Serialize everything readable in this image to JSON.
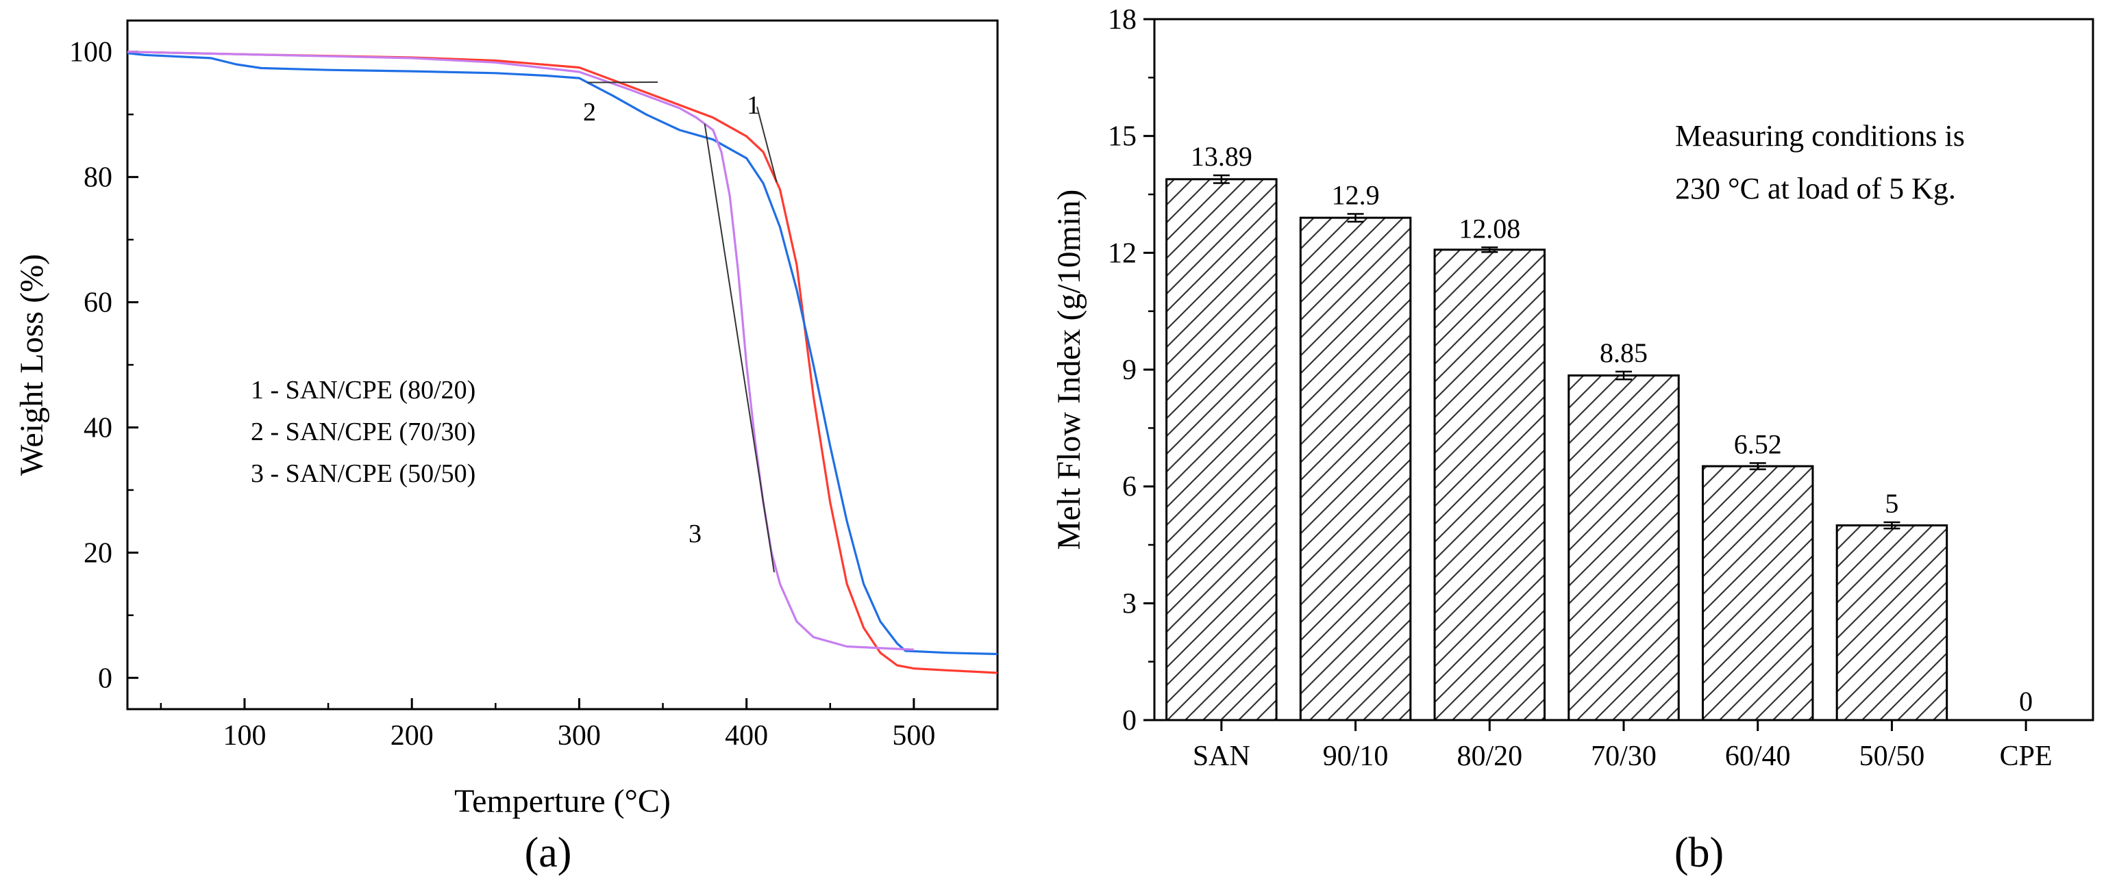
{
  "chart_data": [
    {
      "panel": "(a)",
      "type": "line",
      "xlabel": "Temperture (°C)",
      "ylabel": "Weight Loss (%)",
      "xlim": [
        30,
        550
      ],
      "ylim": [
        -5,
        105
      ],
      "xticks": [
        100,
        200,
        300,
        400,
        500
      ],
      "yticks": [
        0,
        20,
        40,
        60,
        80,
        100
      ],
      "grid": false,
      "legend_position": "middle-left",
      "legend_entries": [
        "1 - SAN/CPE (80/20)",
        "2 - SAN/CPE (70/30)",
        "3 - SAN/CPE (50/50)"
      ],
      "series": [
        {
          "name": "1 - SAN/CPE (80/20)",
          "curve_label": "1",
          "color": "#ff3b30",
          "x": [
            30,
            100,
            200,
            250,
            300,
            320,
            350,
            380,
            400,
            410,
            420,
            430,
            440,
            450,
            460,
            470,
            480,
            490,
            500,
            520,
            550
          ],
          "y": [
            100,
            99.6,
            99.1,
            98.6,
            97.5,
            95.5,
            92.5,
            89.5,
            86.5,
            84,
            78,
            66,
            45,
            28,
            15,
            8,
            4,
            2,
            1.5,
            1.2,
            0.8
          ]
        },
        {
          "name": "2 - SAN/CPE (70/30)",
          "curve_label": "2",
          "color": "#1f6fe5",
          "x": [
            30,
            40,
            80,
            95,
            110,
            150,
            200,
            250,
            280,
            300,
            320,
            340,
            360,
            380,
            400,
            410,
            420,
            430,
            440,
            450,
            460,
            470,
            480,
            490,
            495,
            520,
            550
          ],
          "y": [
            99.8,
            99.5,
            99,
            98,
            97.4,
            97.1,
            96.9,
            96.6,
            96.2,
            95.8,
            93,
            90,
            87.5,
            86,
            83,
            79,
            72,
            62,
            50,
            37,
            25,
            15,
            9,
            5.5,
            4.3,
            4,
            3.8
          ]
        },
        {
          "name": "3 - SAN/CPE (50/50)",
          "curve_label": "3",
          "color": "#c77ef0",
          "x": [
            30,
            100,
            200,
            250,
            300,
            330,
            360,
            370,
            380,
            385,
            390,
            395,
            400,
            405,
            410,
            415,
            420,
            430,
            440,
            460,
            500
          ],
          "y": [
            100,
            99.6,
            99,
            98.3,
            96.8,
            94,
            91,
            89.5,
            87.5,
            84,
            77,
            65,
            50,
            38,
            28,
            20,
            15,
            9,
            6.5,
            5,
            4.5
          ]
        }
      ],
      "annotations": [
        {
          "text": "1",
          "series": "1 - SAN/CPE (80/20)"
        },
        {
          "text": "2",
          "series": "2 - SAN/CPE (70/30)"
        },
        {
          "text": "3",
          "series": "3 - SAN/CPE (50/50)"
        }
      ]
    },
    {
      "panel": "(b)",
      "type": "bar",
      "xlabel": "",
      "ylabel": "Melt Flow Index (g/10min)",
      "ylim": [
        0,
        18
      ],
      "yticks": [
        0,
        3,
        6,
        9,
        12,
        15,
        18
      ],
      "grid": false,
      "categories": [
        "SAN",
        "90/10",
        "80/20",
        "70/30",
        "60/40",
        "50/50",
        "CPE"
      ],
      "values": [
        13.89,
        12.9,
        12.08,
        8.85,
        6.52,
        5,
        0
      ],
      "value_labels": [
        "13.89",
        "12.9",
        "12.08",
        "8.85",
        "6.52",
        "5",
        "0"
      ],
      "errors": [
        0.1,
        0.1,
        0.06,
        0.1,
        0.08,
        0.08,
        0
      ],
      "bar_fill": "diagonal hatch",
      "note_lines": [
        "Measuring conditions is",
        "230 °C at load of 5 Kg."
      ]
    }
  ]
}
